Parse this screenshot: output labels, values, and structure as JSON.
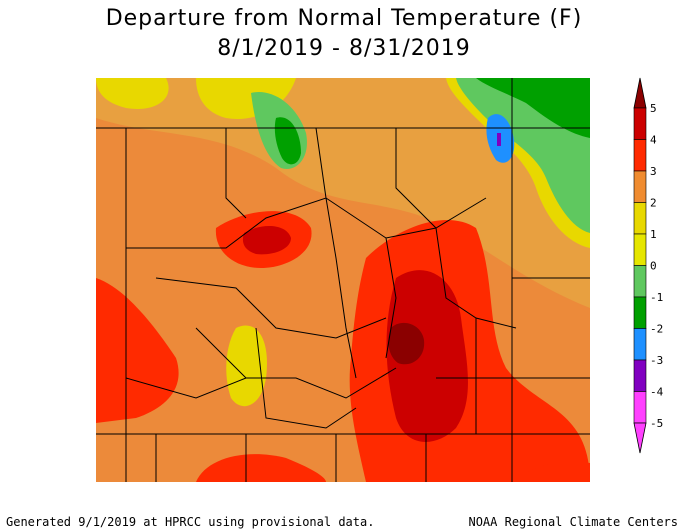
{
  "title": "Departure from Normal Temperature (F)",
  "date_range": "8/1/2019 - 8/31/2019",
  "legend": {
    "ticks": [
      {
        "value": "5",
        "color": "#8b0000"
      },
      {
        "value": "4",
        "color": "#cc0000"
      },
      {
        "value": "3",
        "color": "#ff2a00"
      },
      {
        "value": "2",
        "color": "#f08c30"
      },
      {
        "value": "1",
        "color": "#e8d800"
      },
      {
        "value": "0",
        "color": "#e6e600"
      },
      {
        "value": "-1",
        "color": "#5fc85f"
      },
      {
        "value": "-2",
        "color": "#00a000"
      },
      {
        "value": "-3",
        "color": "#1e90ff"
      },
      {
        "value": "-4",
        "color": "#8000c0"
      },
      {
        "value": "-5",
        "color": "#ff40ff"
      }
    ]
  },
  "footer": {
    "left": "Generated 9/1/2019 at HPRCC using provisional data.",
    "right": "NOAA Regional Climate Centers"
  }
}
